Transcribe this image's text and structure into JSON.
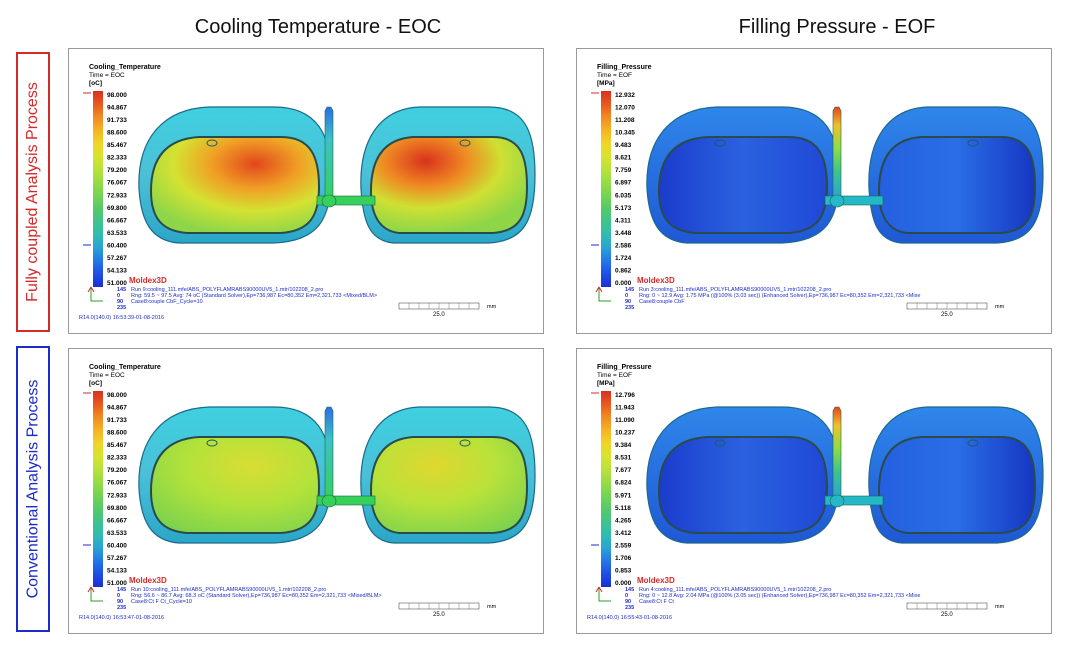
{
  "columns": [
    "Cooling Temperature - EOC",
    "Filling Pressure - EOF"
  ],
  "rows": [
    {
      "label": "Fully coupled Analysis Process",
      "color": "#d42a2a"
    },
    {
      "label": "Conventional Analysis Process",
      "color": "#1c2cc8"
    }
  ],
  "panels": [
    {
      "id": "p11",
      "title": "Cooling_Temperature",
      "time": "Time = EOC",
      "unit": "[oC]",
      "legend": [
        "98.000",
        "94.867",
        "91.733",
        "88.600",
        "85.467",
        "82.333",
        "79.200",
        "76.067",
        "72.933",
        "69.800",
        "66.667",
        "63.533",
        "60.400",
        "57.267",
        "54.133",
        "51.000"
      ],
      "brand": "Moldex3D",
      "line1": "Run 9:cooling_111.mfe/ABS_POLYFLAMRABS90000UV5_1.mtr/102208_2.pro",
      "line2": "Rng: 59.5 ~ 97.5  Avg: 74 oC (Standard Solver),Ep=736,987 Ec=80,352 Em=2,321,733  <Mixed/BLM>",
      "line3": "Case8:couple CbF_Cycle=10",
      "counts": [
        "145",
        "0",
        "90",
        "235"
      ],
      "scale": "25.0",
      "footer": "R14.0(140.0) 16:53:39-01-08-2016",
      "mm": "mm",
      "thermal": "hot"
    },
    {
      "id": "p12",
      "title": "Filling_Pressure",
      "time": "Time = EOF",
      "unit": "[MPa]",
      "legend": [
        "12.932",
        "12.070",
        "11.208",
        "10.345",
        "9.483",
        "8.621",
        "7.759",
        "6.897",
        "6.035",
        "5.173",
        "4.311",
        "3.448",
        "2.586",
        "1.724",
        "0.862",
        "0.000"
      ],
      "brand": "Moldex3D",
      "line1": "Run 3:cooling_111.mfe/ABS_POLYFLAMRABS90000UV5_1.mtr/102208_2.pro",
      "line2": "Rng: 0 ~ 12.9  Avg: 1.75 MPa  (@100% (3.03 sec)) (Enhanced Solver),Ep=736,987 Ec=80,352 Em=2,321,733  <Mixe",
      "line3": "Case8:couple CbF",
      "counts": [
        "145",
        "0",
        "90",
        "235"
      ],
      "scale": "25.0",
      "footer": "",
      "mm": "mm",
      "thermal": "pressure"
    },
    {
      "id": "p21",
      "title": "Cooling_Temperature",
      "time": "Time = EOC",
      "unit": "[oC]",
      "legend": [
        "98.000",
        "94.867",
        "91.733",
        "88.600",
        "85.467",
        "82.333",
        "79.200",
        "76.067",
        "72.933",
        "69.800",
        "66.667",
        "63.533",
        "60.400",
        "57.267",
        "54.133",
        "51.000"
      ],
      "brand": "Moldex3D",
      "line1": "Run 10:cooling_111.mfe/ABS_POLYFLAMRABS90000UV5_1.mtr/102208_2.pro",
      "line2": "Rng: 56.6 ~ 86.7  Avg: 68.3 oC (Standard Solver),Ep=736,987 Ec=80,352 Em=2,321,733  <Mixed/BLM>",
      "line3": "Case8:Ct F Ct_Cycle=10",
      "counts": [
        "145",
        "0",
        "90",
        "235"
      ],
      "scale": "25.0",
      "footer": "R14.0(140.0) 16:53:47-01-08-2016",
      "mm": "mm",
      "thermal": "mild"
    },
    {
      "id": "p22",
      "title": "Filling_Pressure",
      "time": "Time = EOF",
      "unit": "[MPa]",
      "legend": [
        "12.796",
        "11.943",
        "11.090",
        "10.237",
        "9.384",
        "8.531",
        "7.677",
        "6.824",
        "5.971",
        "5.118",
        "4.265",
        "3.412",
        "2.559",
        "1.706",
        "0.853",
        "0.000"
      ],
      "brand": "Moldex3D",
      "line1": "Run 4:cooling_111.mfe/ABS_POLYFLAMRABS90000UV5_1.mtr/102208_2.pro",
      "line2": "Rng: 0 ~ 12.8  Avg: 2.04 MPa  (@100% (3.05 sec)) (Enhanced Solver),Ep=736,987 Ec=80,352 Em=2,321,733  <Mixe",
      "line3": "Case8:Ct F Ct",
      "counts": [
        "145",
        "0",
        "90",
        "235"
      ],
      "scale": "25.0",
      "footer": "R14.0(140.0) 16:55:43-01-08-2016",
      "mm": "mm",
      "thermal": "pressure"
    }
  ],
  "legend_colors": [
    "#d7301f",
    "#e8591f",
    "#f08c22",
    "#f6b325",
    "#f0d42a",
    "#d8e331",
    "#b8e23a",
    "#97dc45",
    "#74d454",
    "#56c96a",
    "#3ec48a",
    "#31bcaf",
    "#2aa3d4",
    "#2477e6",
    "#1f4ee4",
    "#1a2fd6"
  ]
}
